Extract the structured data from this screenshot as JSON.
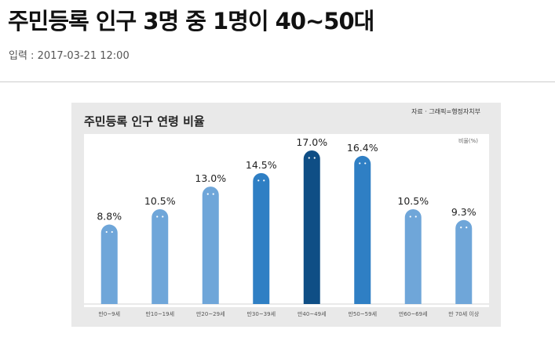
{
  "article": {
    "headline": "주민등록 인구 3명 중 1명이 40~50대",
    "dateline": "입력 : 2017-03-21 12:00"
  },
  "chart_data": {
    "type": "bar",
    "title": "주민등록 인구 연령 비율",
    "source": "자료 · 그래픽=행정자치부",
    "unit": "비율(%)",
    "categories": [
      "만0~9세",
      "만10~19세",
      "만20~29세",
      "만30~39세",
      "만40~49세",
      "만50~59세",
      "만60~69세",
      "만 70세 이상"
    ],
    "values": [
      8.8,
      10.5,
      13.0,
      14.5,
      17.0,
      16.4,
      10.5,
      9.3
    ],
    "value_labels": [
      "8.8%",
      "10.5%",
      "13.0%",
      "14.5%",
      "17.0%",
      "16.4%",
      "10.5%",
      "9.3%"
    ],
    "colors": [
      "#6fa6d9",
      "#6fa6d9",
      "#6fa6d9",
      "#2f7fc4",
      "#0f4e85",
      "#2f7fc4",
      "#6fa6d9",
      "#6fa6d9"
    ],
    "ylim": [
      0,
      17.0
    ],
    "legend": "none",
    "grid": false,
    "bar_style": "rounded bar with face cap"
  }
}
